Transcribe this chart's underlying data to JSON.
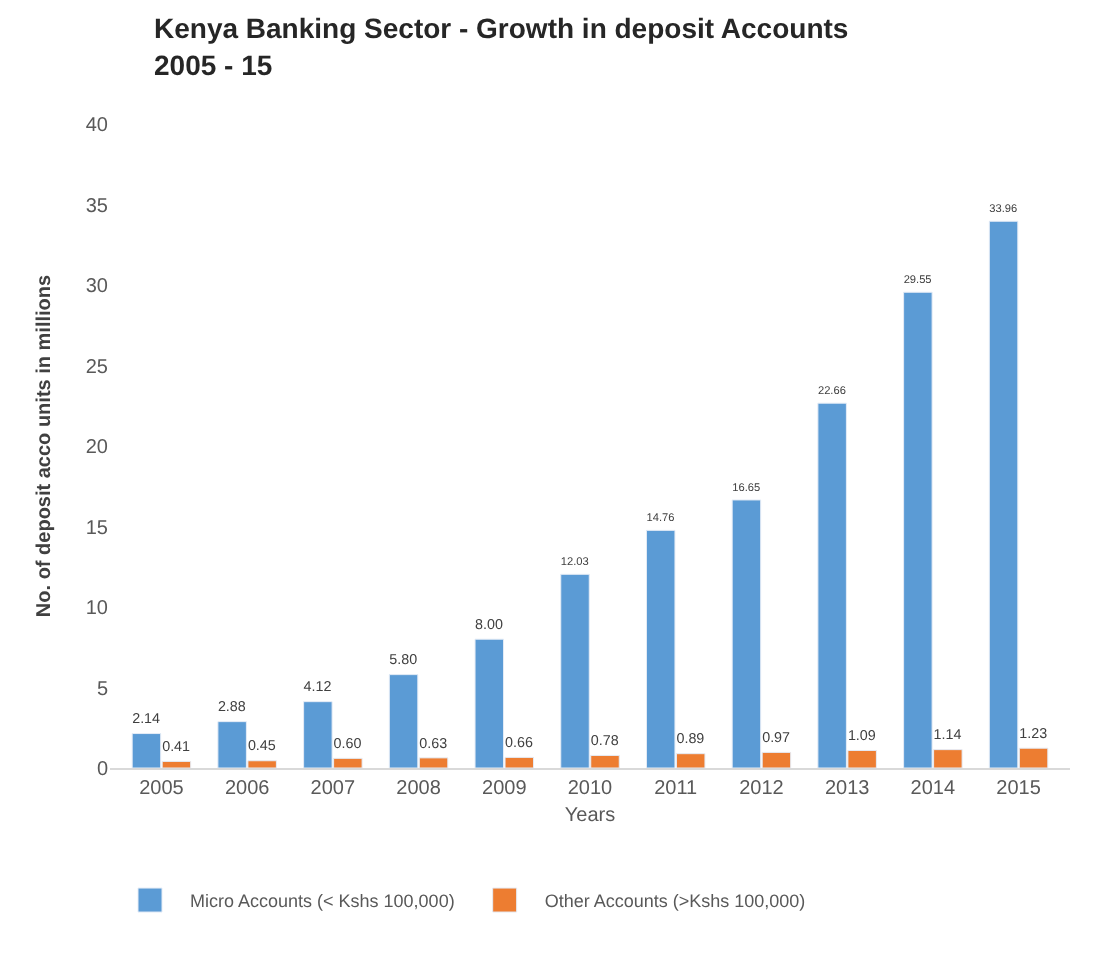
{
  "chart_data": {
    "type": "bar",
    "title": "Kenya Banking Sector - Growth in deposit Accounts\n2005 - 15",
    "xlabel": "Years",
    "ylabel": "No. of deposit acco units in millions",
    "categories": [
      "2005",
      "2006",
      "2007",
      "2008",
      "2009",
      "2010",
      "2011",
      "2012",
      "2013",
      "2014",
      "2015"
    ],
    "series": [
      {
        "name": "Micro Accounts (< Kshs 100,000)",
        "color": "#5b9bd5",
        "values": [
          2.14,
          2.88,
          4.12,
          5.8,
          8.0,
          12.03,
          14.76,
          16.65,
          22.66,
          29.55,
          33.96
        ],
        "value_labels": [
          "2.14",
          "2.88",
          "4.12",
          "5.80",
          "8.00",
          "12.03",
          "14.76",
          "16.65",
          "22.66",
          "29.55",
          "33.96"
        ]
      },
      {
        "name": "Other Accounts (>Kshs 100,000)",
        "color": "#ed7d31",
        "values": [
          0.41,
          0.45,
          0.6,
          0.63,
          0.66,
          0.78,
          0.89,
          0.97,
          1.09,
          1.14,
          1.23
        ],
        "value_labels": [
          "0.41",
          "0.45",
          "0.60",
          "0.63",
          "0.66",
          "0.78",
          "0.89",
          "0.97",
          "1.09",
          "1.14",
          "1.23"
        ]
      }
    ],
    "ylim": [
      0,
      40
    ],
    "yticks": [
      0,
      5,
      10,
      15,
      20,
      25,
      30,
      35,
      40
    ],
    "legend": "bottom left"
  }
}
